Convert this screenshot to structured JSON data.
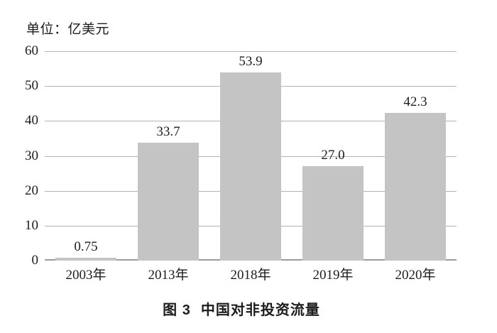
{
  "unit_label": "单位：亿美元",
  "caption": {
    "label": "图 3",
    "title": "中国对非投资流量"
  },
  "chart_data": {
    "type": "bar",
    "title": "图 3 中国对非投资流量",
    "unit_label": "单位：亿美元",
    "categories": [
      "2003年",
      "2013年",
      "2018年",
      "2019年",
      "2020年"
    ],
    "values": [
      0.75,
      33.7,
      53.9,
      27.0,
      42.3
    ],
    "value_labels": [
      "0.75",
      "33.7",
      "53.9",
      "27.0",
      "42.3"
    ],
    "xlabel": "",
    "ylabel": "",
    "yticks": [
      0,
      10,
      20,
      30,
      40,
      50,
      60
    ],
    "ylim": [
      0,
      60
    ],
    "grid": true,
    "legend": "none",
    "bar_color": "#c4c4c4",
    "gridline_color": "#b3b3b3",
    "zero_line_color": "#9c9c9c",
    "text_color": "#1c1c1c"
  }
}
